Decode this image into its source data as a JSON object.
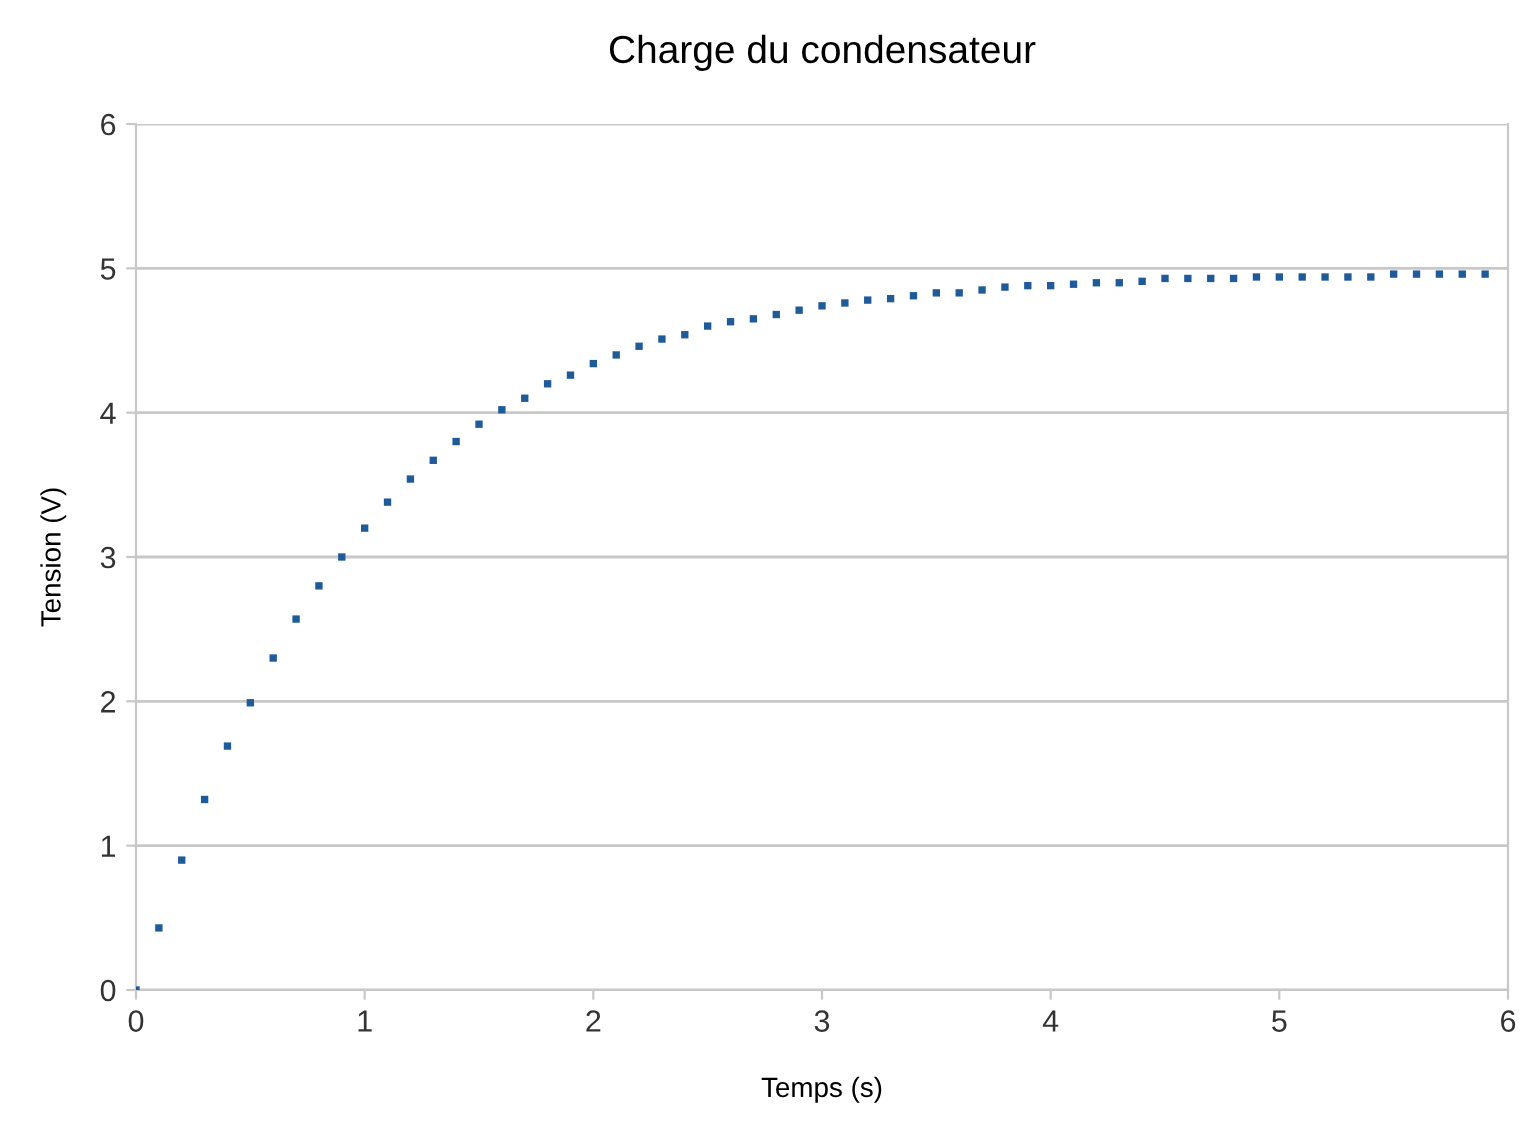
{
  "chart_data": {
    "type": "scatter",
    "title": "Charge du condensateur",
    "xlabel": "Temps (s)",
    "ylabel": "Tension (V)",
    "x": [
      0,
      0.1,
      0.2,
      0.3,
      0.4,
      0.5,
      0.6,
      0.7,
      0.8,
      0.9,
      1.0,
      1.1,
      1.2,
      1.3,
      1.4,
      1.5,
      1.6,
      1.7,
      1.8,
      1.9,
      2.0,
      2.1,
      2.2,
      2.3,
      2.4,
      2.5,
      2.6,
      2.7,
      2.8,
      2.9,
      3.0,
      3.1,
      3.2,
      3.3,
      3.4,
      3.5,
      3.6,
      3.7,
      3.8,
      3.9,
      4.0,
      4.1,
      4.2,
      4.3,
      4.4,
      4.5,
      4.6,
      4.7,
      4.8,
      4.9,
      5.0,
      5.1,
      5.2,
      5.3,
      5.4,
      5.5,
      5.6,
      5.7,
      5.8,
      5.9
    ],
    "series": [
      {
        "color": "#1f5b99",
        "values": [
          0,
          0.43,
          0.9,
          1.32,
          1.69,
          1.99,
          2.3,
          2.57,
          2.8,
          3.0,
          3.2,
          3.38,
          3.54,
          3.67,
          3.8,
          3.92,
          4.02,
          4.1,
          4.2,
          4.26,
          4.34,
          4.4,
          4.46,
          4.51,
          4.54,
          4.6,
          4.63,
          4.65,
          4.68,
          4.71,
          4.74,
          4.76,
          4.78,
          4.79,
          4.81,
          4.83,
          4.83,
          4.85,
          4.87,
          4.88,
          4.88,
          4.89,
          4.9,
          4.9,
          4.91,
          4.93,
          4.93,
          4.93,
          4.93,
          4.94,
          4.94,
          4.94,
          4.94,
          4.94,
          4.94,
          4.96,
          4.96,
          4.96,
          4.96,
          4.96
        ]
      }
    ],
    "xlim": [
      0,
      6
    ],
    "xticks": [
      0,
      1,
      2,
      3,
      4,
      5,
      6
    ],
    "ylim": [
      0,
      6
    ],
    "yticks": [
      0,
      1,
      2,
      3,
      4,
      5,
      6
    ],
    "grid": "y",
    "marker": "square",
    "legend": false
  }
}
